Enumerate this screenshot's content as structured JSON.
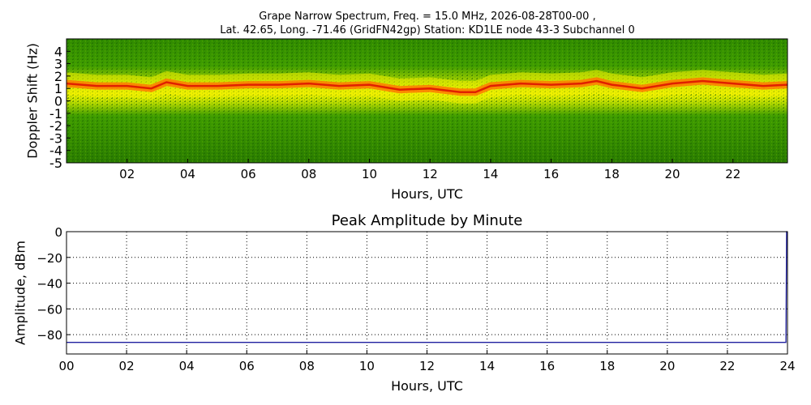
{
  "colors": {
    "line": "#1f1f9f",
    "grid": "#000000",
    "spec_green": "#2f8a00",
    "spec_yellow": "#f0f000",
    "spec_orange": "#ff7a00",
    "spec_red": "#e02000"
  },
  "chart_data": [
    {
      "type": "heatmap",
      "title": "Grape Narrow Spectrum, Freq. = 15.0 MHz, 2026-08-28T00-00 ,",
      "subtitle": "Lat.  42.65, Long. -71.46 (GridFN42gp) Station: KD1LE node 43-3 Subchannel 0",
      "xlabel": "Hours, UTC",
      "ylabel": "Doppler Shift (Hz)",
      "xlim": [
        0,
        23.8
      ],
      "ylim": [
        -5,
        5
      ],
      "x_ticks": [
        "02",
        "04",
        "06",
        "08",
        "10",
        "12",
        "14",
        "16",
        "18",
        "20",
        "22"
      ],
      "x_tick_values": [
        2,
        4,
        6,
        8,
        10,
        12,
        14,
        16,
        18,
        20,
        22
      ],
      "y_ticks": [
        "4",
        "3",
        "2",
        "1",
        "0",
        "-1",
        "-2",
        "-3",
        "-4",
        "-5"
      ],
      "y_tick_values": [
        4,
        3,
        2,
        1,
        0,
        -1,
        -2,
        -3,
        -4,
        -5
      ],
      "grid": false,
      "peak_doppler": {
        "hours": [
          0,
          1,
          2,
          2.8,
          3.3,
          4,
          5,
          6,
          7,
          8,
          9,
          10,
          11,
          12,
          13,
          13.5,
          14,
          15,
          16,
          17,
          17.5,
          18,
          19,
          20,
          21,
          22,
          23,
          23.8
        ],
        "hz": [
          1.4,
          1.2,
          1.2,
          1.0,
          1.5,
          1.2,
          1.2,
          1.3,
          1.3,
          1.4,
          1.2,
          1.3,
          0.9,
          1.0,
          0.7,
          0.7,
          1.2,
          1.4,
          1.3,
          1.4,
          1.6,
          1.3,
          1.0,
          1.4,
          1.6,
          1.4,
          1.2,
          1.3
        ]
      }
    },
    {
      "type": "line",
      "title": "Peak Amplitude by Minute",
      "xlabel": "Hours, UTC",
      "ylabel": "Amplitude, dBm",
      "xlim": [
        0,
        24
      ],
      "ylim": [
        -95,
        0
      ],
      "x_ticks": [
        "00",
        "02",
        "04",
        "06",
        "08",
        "10",
        "12",
        "14",
        "16",
        "18",
        "20",
        "22",
        "24"
      ],
      "x_tick_values": [
        0,
        2,
        4,
        6,
        8,
        10,
        12,
        14,
        16,
        18,
        20,
        22,
        24
      ],
      "y_ticks": [
        "0",
        "−20",
        "−40",
        "−60",
        "−80"
      ],
      "y_tick_values": [
        0,
        -20,
        -40,
        -60,
        -80
      ],
      "grid": true,
      "series": [
        {
          "x": [
            0,
            2,
            4,
            6,
            8,
            10,
            12,
            14,
            16,
            18,
            20,
            22,
            23.95,
            23.97,
            24
          ],
          "y": [
            -86,
            -86,
            -86,
            -86,
            -86,
            -86,
            -86,
            -86,
            -86,
            -86,
            -86,
            -86,
            -86,
            0,
            0
          ]
        }
      ]
    }
  ]
}
